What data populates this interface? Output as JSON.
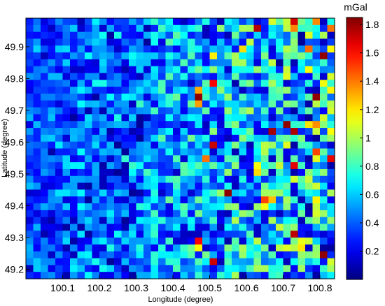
{
  "chart_data": {
    "type": "heatmap",
    "title": "",
    "xlabel": "Longitude (degree)",
    "ylabel": "Latitude (degree)",
    "xlim": [
      100.0,
      100.84
    ],
    "ylim": [
      49.17,
      49.99
    ],
    "xticks": [
      {
        "value": 100.1,
        "label": "100.1"
      },
      {
        "value": 100.2,
        "label": "100.2"
      },
      {
        "value": 100.3,
        "label": "100.3"
      },
      {
        "value": 100.4,
        "label": "100.4"
      },
      {
        "value": 100.5,
        "label": "100.5"
      },
      {
        "value": 100.6,
        "label": "100.6"
      },
      {
        "value": 100.7,
        "label": "100.7"
      },
      {
        "value": 100.8,
        "label": "100.8"
      }
    ],
    "yticks": [
      {
        "value": 49.2,
        "label": "49.2"
      },
      {
        "value": 49.3,
        "label": "49.3"
      },
      {
        "value": 49.4,
        "label": "49.4"
      },
      {
        "value": 49.5,
        "label": "49.5"
      },
      {
        "value": 49.6,
        "label": "49.6"
      },
      {
        "value": 49.7,
        "label": "49.7"
      },
      {
        "value": 49.8,
        "label": "49.8"
      },
      {
        "value": 49.9,
        "label": "49.9"
      }
    ],
    "grid": {
      "cols": 42,
      "rows": 38,
      "seed": 20240611
    },
    "colorbar": {
      "title": "mGal",
      "colormap": "jet",
      "range": [
        0.0,
        1.85
      ],
      "ticks": [
        {
          "value": 0.2,
          "label": "0.2"
        },
        {
          "value": 0.4,
          "label": "0.4"
        },
        {
          "value": 0.6,
          "label": "0.6"
        },
        {
          "value": 0.8,
          "label": "0.8"
        },
        {
          "value": 1.0,
          "label": "1"
        },
        {
          "value": 1.2,
          "label": "1.2"
        },
        {
          "value": 1.4,
          "label": "1.4"
        },
        {
          "value": 1.6,
          "label": "1.6"
        },
        {
          "value": 1.8,
          "label": "1.8"
        }
      ]
    },
    "grid_lines": false,
    "legend": "none"
  }
}
